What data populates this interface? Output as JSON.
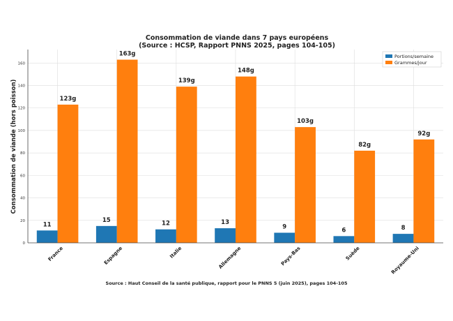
{
  "chart_data": {
    "type": "bar",
    "title": "Consommation de viande dans 7 pays européens",
    "subtitle": "(Source : HCSP, Rapport PNNS 2025, pages 104-105)",
    "xlabel": "",
    "ylabel": "Consommation de viande (hors poisson)",
    "categories": [
      "France",
      "Espagne",
      "Italie",
      "Allemagne",
      "Pays-Bas",
      "Suède",
      "Royaume-Uni"
    ],
    "series": [
      {
        "name": "Portions/semaine",
        "values": [
          11,
          15,
          12,
          13,
          9,
          6,
          8
        ],
        "labels": [
          "11",
          "15",
          "12",
          "13",
          "9",
          "6",
          "8"
        ],
        "color": "#1f77b4"
      },
      {
        "name": "Grammes/jour",
        "values": [
          123,
          163,
          139,
          148,
          103,
          82,
          92
        ],
        "labels": [
          "123g",
          "163g",
          "139g",
          "148g",
          "103g",
          "82g",
          "92g"
        ],
        "color": "#ff7f0e"
      }
    ],
    "ylim": [
      0,
      172
    ],
    "yticks": [
      "0",
      "20",
      "40",
      "60",
      "80",
      "100",
      "120",
      "140",
      "160"
    ],
    "grid": true,
    "legend_position": "top-right",
    "footnote": "Source : Haut Conseil de la santé publique, rapport pour le PNNS 5 (juin 2025), pages 104-105"
  }
}
